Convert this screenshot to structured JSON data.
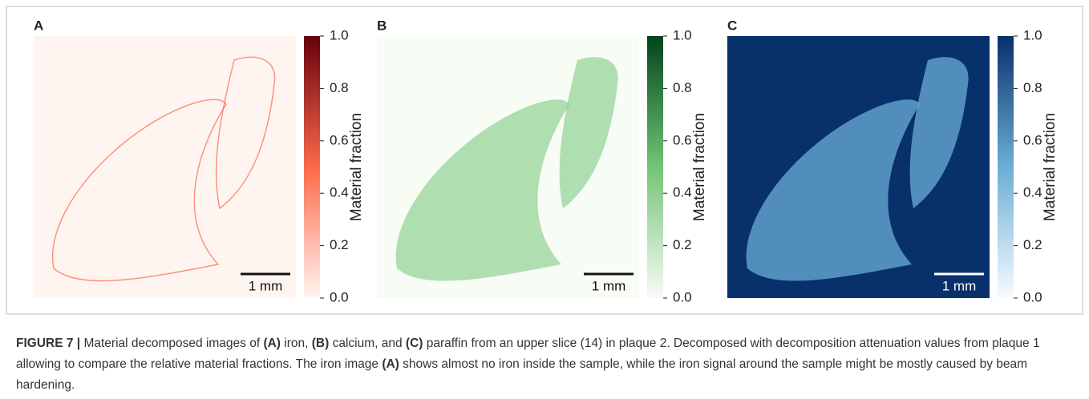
{
  "panels": [
    {
      "label": "A",
      "colorbar_label": "Material fraction",
      "scalebar": "1 mm",
      "cmap": [
        "#fff5f0",
        "#fb6a4a",
        "#67000d"
      ]
    },
    {
      "label": "B",
      "colorbar_label": "Material fraction",
      "scalebar": "1 mm",
      "cmap": [
        "#f7fcf5",
        "#74c476",
        "#00441b"
      ]
    },
    {
      "label": "C",
      "colorbar_label": "Material fraction",
      "scalebar": "1 mm",
      "cmap": [
        "#f7fbff",
        "#6baed6",
        "#08306b"
      ]
    }
  ],
  "colorbar_lim": [
    0,
    1
  ],
  "colorbar_ticks": [
    {
      "value": 0,
      "label": "0.0"
    },
    {
      "value": 0.2,
      "label": "0.2"
    },
    {
      "value": 0.4,
      "label": "0.4"
    },
    {
      "value": 0.6,
      "label": "0.6"
    },
    {
      "value": 0.8,
      "label": "0.8"
    },
    {
      "value": 1,
      "label": "1.0"
    }
  ],
  "caption": [
    {
      "text": "FIGURE 7 |",
      "bold": true
    },
    {
      "text": " Material decomposed images of ",
      "bold": false
    },
    {
      "text": "(A)",
      "bold": true
    },
    {
      "text": " iron, ",
      "bold": false
    },
    {
      "text": "(B)",
      "bold": true
    },
    {
      "text": " calcium, and ",
      "bold": false
    },
    {
      "text": "(C)",
      "bold": true
    },
    {
      "text": " paraffin from an upper slice (14) in plaque 2. Decomposed with decomposition attenuation values from plaque 1 allowing to compare the relative material fractions. The iron image ",
      "bold": false
    },
    {
      "text": "(A)",
      "bold": true
    },
    {
      "text": " shows almost no iron inside the sample, while the iron signal around the sample might be mostly caused by beam hardening.",
      "bold": false
    }
  ]
}
